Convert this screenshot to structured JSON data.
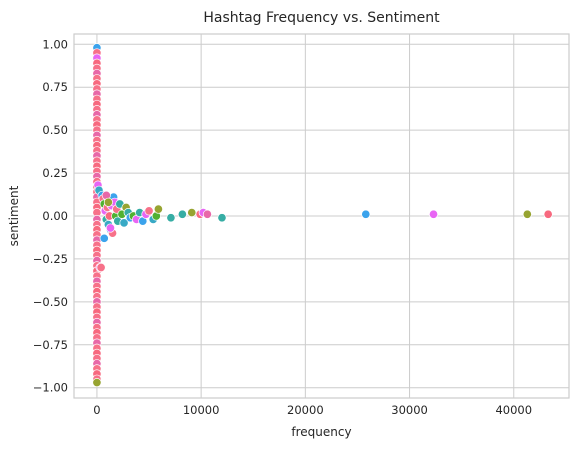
{
  "chart_data": {
    "type": "scatter",
    "title": "Hashtag Frequency vs. Sentiment",
    "xlabel": "frequency",
    "ylabel": "sentiment",
    "xlim": [
      -2200,
      45300
    ],
    "ylim": [
      -1.06,
      1.06
    ],
    "xticks": [
      {
        "value": 0,
        "label": "0"
      },
      {
        "value": 10000,
        "label": "10000"
      },
      {
        "value": 20000,
        "label": "20000"
      },
      {
        "value": 30000,
        "label": "30000"
      },
      {
        "value": 40000,
        "label": "40000"
      }
    ],
    "yticks": [
      {
        "value": 1.0,
        "label": "1.00"
      },
      {
        "value": 0.75,
        "label": "0.75"
      },
      {
        "value": 0.5,
        "label": "0.50"
      },
      {
        "value": 0.25,
        "label": "0.25"
      },
      {
        "value": 0.0,
        "label": "0.00"
      },
      {
        "value": -0.25,
        "label": "−0.25"
      },
      {
        "value": -0.5,
        "label": "−0.50"
      },
      {
        "value": -0.75,
        "label": "−0.75"
      },
      {
        "value": -1.0,
        "label": "−1.00"
      }
    ],
    "grid": true,
    "legend": "none",
    "points": [
      {
        "x": 0,
        "y": 0.98,
        "color": "#3ba3ec"
      },
      {
        "x": 0,
        "y": 0.95,
        "color": "#f77189"
      },
      {
        "x": 0,
        "y": 0.92,
        "color": "#e866f4"
      },
      {
        "x": 0,
        "y": 0.89,
        "color": "#f7697f"
      },
      {
        "x": 0,
        "y": 0.86,
        "color": "#f77189"
      },
      {
        "x": 0,
        "y": 0.83,
        "color": "#e868a8"
      },
      {
        "x": 0,
        "y": 0.8,
        "color": "#f77189"
      },
      {
        "x": 0,
        "y": 0.77,
        "color": "#f7697f"
      },
      {
        "x": 0,
        "y": 0.74,
        "color": "#f77189"
      },
      {
        "x": 0,
        "y": 0.71,
        "color": "#e868a8"
      },
      {
        "x": 0,
        "y": 0.68,
        "color": "#f77189"
      },
      {
        "x": 0,
        "y": 0.65,
        "color": "#f7697f"
      },
      {
        "x": 0,
        "y": 0.62,
        "color": "#f77189"
      },
      {
        "x": 0,
        "y": 0.59,
        "color": "#e868a8"
      },
      {
        "x": 0,
        "y": 0.56,
        "color": "#f77189"
      },
      {
        "x": 0,
        "y": 0.53,
        "color": "#f7697f"
      },
      {
        "x": 0,
        "y": 0.5,
        "color": "#f77189"
      },
      {
        "x": 0,
        "y": 0.47,
        "color": "#e868a8"
      },
      {
        "x": 0,
        "y": 0.44,
        "color": "#f77189"
      },
      {
        "x": 0,
        "y": 0.41,
        "color": "#f7697f"
      },
      {
        "x": 0,
        "y": 0.38,
        "color": "#f77189"
      },
      {
        "x": 0,
        "y": 0.35,
        "color": "#e868a8"
      },
      {
        "x": 0,
        "y": 0.32,
        "color": "#f77189"
      },
      {
        "x": 0,
        "y": 0.29,
        "color": "#f7697f"
      },
      {
        "x": 0,
        "y": 0.26,
        "color": "#f77189"
      },
      {
        "x": 0,
        "y": 0.23,
        "color": "#e868a8"
      },
      {
        "x": 0,
        "y": 0.2,
        "color": "#f77189"
      },
      {
        "x": 0,
        "y": 0.17,
        "color": "#f7697f"
      },
      {
        "x": 0,
        "y": 0.14,
        "color": "#f77189"
      },
      {
        "x": 0,
        "y": 0.11,
        "color": "#e868a8"
      },
      {
        "x": 0,
        "y": 0.08,
        "color": "#f77189"
      },
      {
        "x": 0,
        "y": 0.05,
        "color": "#f7697f"
      },
      {
        "x": 0,
        "y": 0.02,
        "color": "#f77189"
      },
      {
        "x": 0,
        "y": -0.02,
        "color": "#e868a8"
      },
      {
        "x": 0,
        "y": -0.05,
        "color": "#f77189"
      },
      {
        "x": 0,
        "y": -0.08,
        "color": "#f7697f"
      },
      {
        "x": 0,
        "y": -0.11,
        "color": "#f77189"
      },
      {
        "x": 0,
        "y": -0.14,
        "color": "#e868a8"
      },
      {
        "x": 0,
        "y": -0.17,
        "color": "#f77189"
      },
      {
        "x": 0,
        "y": -0.2,
        "color": "#f7697f"
      },
      {
        "x": 0,
        "y": -0.23,
        "color": "#f77189"
      },
      {
        "x": 0,
        "y": -0.26,
        "color": "#e868a8"
      },
      {
        "x": 0,
        "y": -0.29,
        "color": "#f77189"
      },
      {
        "x": 0,
        "y": -0.32,
        "color": "#f7697f"
      },
      {
        "x": 0,
        "y": -0.35,
        "color": "#f77189"
      },
      {
        "x": 0,
        "y": -0.38,
        "color": "#e868a8"
      },
      {
        "x": 0,
        "y": -0.41,
        "color": "#f77189"
      },
      {
        "x": 0,
        "y": -0.44,
        "color": "#f7697f"
      },
      {
        "x": 0,
        "y": -0.47,
        "color": "#f77189"
      },
      {
        "x": 0,
        "y": -0.5,
        "color": "#e868a8"
      },
      {
        "x": 0,
        "y": -0.53,
        "color": "#f77189"
      },
      {
        "x": 0,
        "y": -0.56,
        "color": "#f7697f"
      },
      {
        "x": 0,
        "y": -0.59,
        "color": "#f77189"
      },
      {
        "x": 0,
        "y": -0.62,
        "color": "#e868a8"
      },
      {
        "x": 0,
        "y": -0.65,
        "color": "#f77189"
      },
      {
        "x": 0,
        "y": -0.68,
        "color": "#f7697f"
      },
      {
        "x": 0,
        "y": -0.71,
        "color": "#f77189"
      },
      {
        "x": 0,
        "y": -0.74,
        "color": "#e868a8"
      },
      {
        "x": 0,
        "y": -0.77,
        "color": "#f77189"
      },
      {
        "x": 0,
        "y": -0.8,
        "color": "#f7697f"
      },
      {
        "x": 0,
        "y": -0.83,
        "color": "#f77189"
      },
      {
        "x": 0,
        "y": -0.86,
        "color": "#e868a8"
      },
      {
        "x": 0,
        "y": -0.89,
        "color": "#f77189"
      },
      {
        "x": 0,
        "y": -0.92,
        "color": "#f7697f"
      },
      {
        "x": 0,
        "y": -0.95,
        "color": "#f77189"
      },
      {
        "x": 0,
        "y": -0.97,
        "color": "#97a431"
      },
      {
        "x": 100,
        "y": 0.18,
        "color": "#e866f4"
      },
      {
        "x": 200,
        "y": 0.15,
        "color": "#38a9c5"
      },
      {
        "x": 300,
        "y": -0.3,
        "color": "#e866f4"
      },
      {
        "x": 400,
        "y": -0.3,
        "color": "#f77189"
      },
      {
        "x": 500,
        "y": 0.12,
        "color": "#3ba3ec"
      },
      {
        "x": 600,
        "y": 0.1,
        "color": "#f77189"
      },
      {
        "x": 700,
        "y": 0.07,
        "color": "#50b131"
      },
      {
        "x": 800,
        "y": 0.03,
        "color": "#e866f4"
      },
      {
        "x": 900,
        "y": -0.02,
        "color": "#36ada4"
      },
      {
        "x": 1000,
        "y": 0.05,
        "color": "#f77189"
      },
      {
        "x": 1100,
        "y": -0.05,
        "color": "#38a9c5"
      },
      {
        "x": 1200,
        "y": 0.0,
        "color": "#f7697f"
      },
      {
        "x": 1300,
        "y": -0.08,
        "color": "#3ba3ec"
      },
      {
        "x": 1400,
        "y": 0.06,
        "color": "#e866f4"
      },
      {
        "x": 1500,
        "y": -0.1,
        "color": "#f77189"
      },
      {
        "x": 1600,
        "y": 0.11,
        "color": "#3ba3ec"
      },
      {
        "x": 1700,
        "y": 0.08,
        "color": "#e866f4"
      },
      {
        "x": 1800,
        "y": 0.0,
        "color": "#50b131"
      },
      {
        "x": 1900,
        "y": 0.04,
        "color": "#f77189"
      },
      {
        "x": 2000,
        "y": -0.03,
        "color": "#36ada4"
      },
      {
        "x": 700,
        "y": -0.13,
        "color": "#3ba3ec"
      },
      {
        "x": 900,
        "y": 0.12,
        "color": "#e868a8"
      },
      {
        "x": 1100,
        "y": 0.08,
        "color": "#97a431"
      },
      {
        "x": 1300,
        "y": -0.07,
        "color": "#e866f4"
      },
      {
        "x": 2200,
        "y": 0.07,
        "color": "#36ada4"
      },
      {
        "x": 2400,
        "y": 0.01,
        "color": "#50b131"
      },
      {
        "x": 2600,
        "y": -0.04,
        "color": "#38a9c5"
      },
      {
        "x": 2800,
        "y": 0.05,
        "color": "#97a431"
      },
      {
        "x": 3000,
        "y": 0.02,
        "color": "#36ada4"
      },
      {
        "x": 3200,
        "y": -0.01,
        "color": "#3ba3ec"
      },
      {
        "x": 3500,
        "y": 0.0,
        "color": "#50b131"
      },
      {
        "x": 3800,
        "y": -0.02,
        "color": "#e866f4"
      },
      {
        "x": 4100,
        "y": 0.02,
        "color": "#36ada4"
      },
      {
        "x": 4400,
        "y": -0.03,
        "color": "#3ba3ec"
      },
      {
        "x": 4700,
        "y": 0.01,
        "color": "#e866f4"
      },
      {
        "x": 5000,
        "y": 0.03,
        "color": "#f77189"
      },
      {
        "x": 5400,
        "y": -0.02,
        "color": "#38a9c5"
      },
      {
        "x": 5700,
        "y": 0.0,
        "color": "#50b131"
      },
      {
        "x": 5900,
        "y": 0.04,
        "color": "#97a431"
      },
      {
        "x": 7100,
        "y": -0.01,
        "color": "#36ada4"
      },
      {
        "x": 8200,
        "y": 0.01,
        "color": "#36ada4"
      },
      {
        "x": 9100,
        "y": 0.02,
        "color": "#97a431"
      },
      {
        "x": 9900,
        "y": 0.01,
        "color": "#f7697f"
      },
      {
        "x": 10200,
        "y": 0.02,
        "color": "#e866f4"
      },
      {
        "x": 10600,
        "y": 0.01,
        "color": "#e868a8"
      },
      {
        "x": 12000,
        "y": -0.01,
        "color": "#36ada4"
      },
      {
        "x": 25800,
        "y": 0.01,
        "color": "#3ba3ec"
      },
      {
        "x": 32300,
        "y": 0.01,
        "color": "#e866f4"
      },
      {
        "x": 41300,
        "y": 0.01,
        "color": "#97a431"
      },
      {
        "x": 43300,
        "y": 0.01,
        "color": "#f7697f"
      }
    ]
  }
}
